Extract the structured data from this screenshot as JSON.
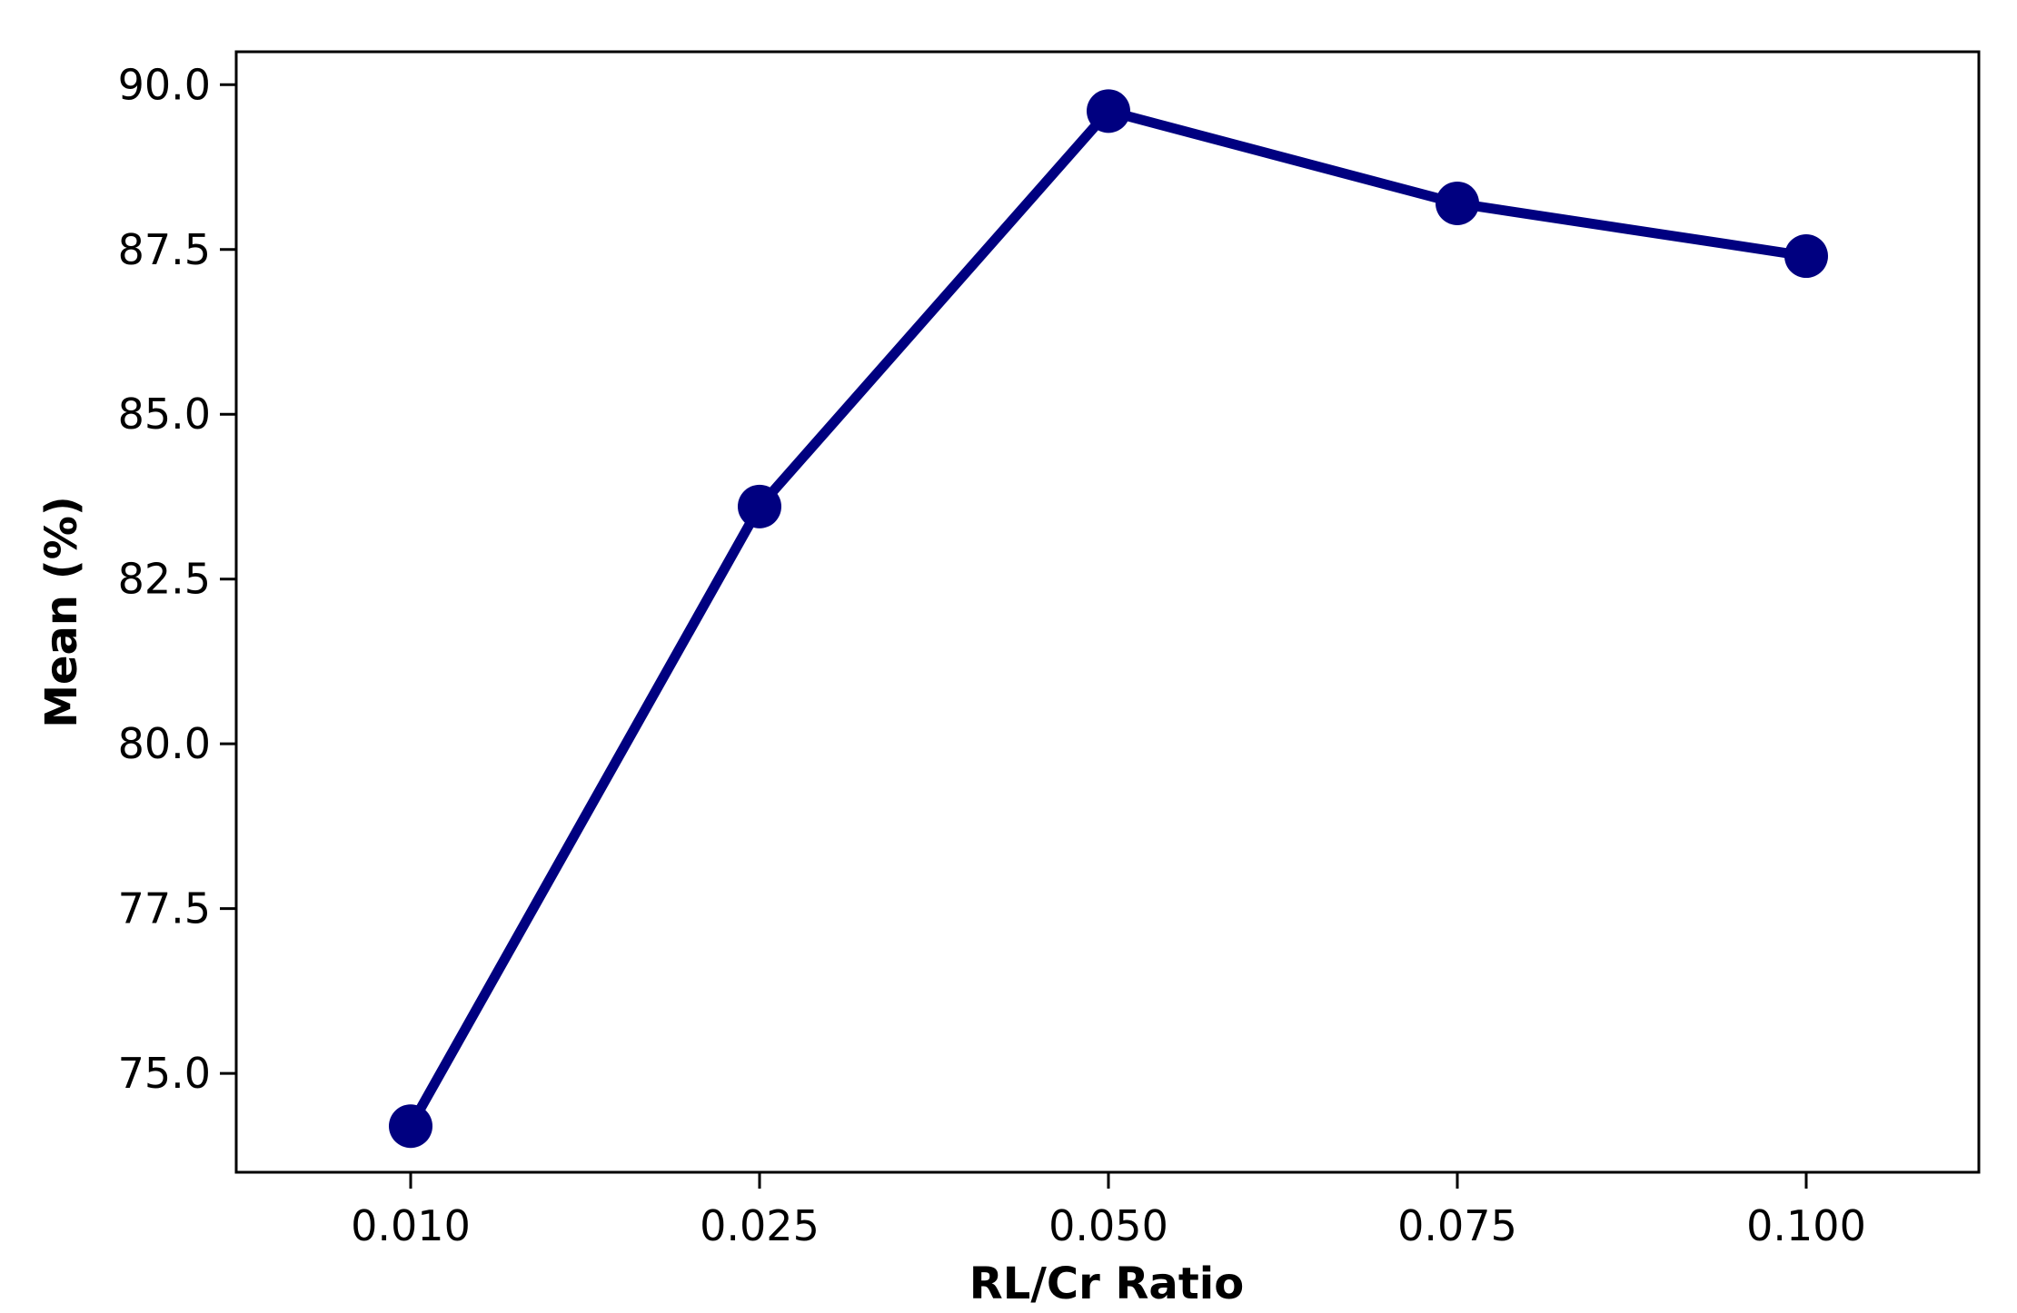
{
  "chart_data": {
    "type": "line",
    "title": "",
    "xlabel": "RL/Cr Ratio",
    "ylabel": "Mean (%)",
    "categories": [
      "0.010",
      "0.025",
      "0.050",
      "0.075",
      "0.100"
    ],
    "series": [
      {
        "values": [
          74.2,
          83.6,
          89.6,
          88.2,
          87.4
        ]
      }
    ],
    "yticks": [
      "75.0",
      "77.5",
      "80.0",
      "82.5",
      "85.0",
      "87.5",
      "90.0"
    ],
    "ylim": [
      73.5,
      90.5
    ],
    "grid": false,
    "legend": "none",
    "colors": {
      "series": "#000080",
      "axis": "#000000",
      "background": "#ffffff"
    }
  }
}
